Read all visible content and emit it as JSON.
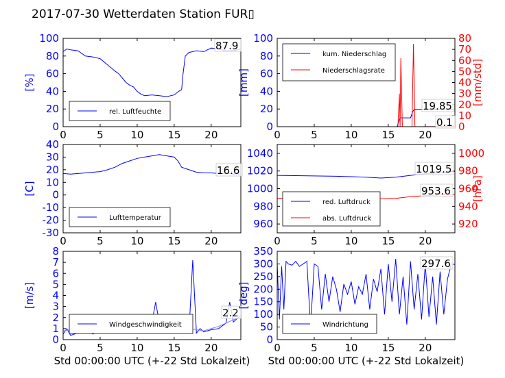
{
  "title": "2017-07-30 Wetterdaten Station FUR▯",
  "colors": {
    "primary": "#0000ff",
    "secondary": "#ff0000",
    "light": "#8080ff"
  },
  "chart_data": [
    {
      "type": "line",
      "ylabel": "[%]",
      "ylim": [
        0,
        100
      ],
      "yticks": [
        0,
        20,
        40,
        60,
        80,
        100
      ],
      "xlim": [
        0,
        24
      ],
      "xticks": [
        0,
        5,
        10,
        15,
        20
      ],
      "legend": {
        "placement": "lower-left",
        "entries": [
          "rel. Luftfeuchte"
        ]
      },
      "annotation": "87.9",
      "series": [
        {
          "name": "rel. Luftfeuchte",
          "color": "#0000ff",
          "x": [
            0,
            0.5,
            1,
            2,
            3,
            4,
            5,
            6,
            7,
            7.5,
            8,
            8.5,
            9,
            9.5,
            10,
            10.5,
            11,
            12,
            13,
            14,
            15,
            15.6,
            16,
            16.2,
            16.5,
            17,
            18,
            19,
            20,
            21,
            22,
            23,
            24
          ],
          "y": [
            85,
            88,
            87,
            86,
            80,
            79,
            77,
            70,
            63,
            60,
            55,
            50,
            47,
            45,
            40,
            37,
            35,
            36,
            35,
            34,
            36,
            40,
            42,
            60,
            80,
            84,
            86,
            85,
            89,
            88,
            86,
            86,
            88
          ]
        }
      ]
    },
    {
      "type": "line",
      "ylabel": "[mm]",
      "ylim": [
        0,
        100
      ],
      "yticks": [
        0,
        20,
        40,
        60,
        80,
        100
      ],
      "y2label": "[mm/std]",
      "y2lim": [
        0,
        80
      ],
      "y2ticks": [
        0,
        10,
        20,
        30,
        40,
        50,
        60,
        70,
        80
      ],
      "xlim": [
        0,
        24
      ],
      "xticks": [
        0,
        5,
        10,
        15,
        20
      ],
      "legend": {
        "placement": "upper-left",
        "entries": [
          "kum. Niederschlag",
          "Niederschlagsrate"
        ]
      },
      "annotations": [
        "19.85",
        "0.1"
      ],
      "series": [
        {
          "name": "kum. Niederschlag",
          "color": "#0000ff",
          "axis": "left",
          "x": [
            0,
            16.2,
            16.4,
            16.6,
            18,
            18.3,
            18.5,
            20,
            24
          ],
          "y": [
            0,
            0,
            6,
            10,
            10,
            17,
            19.5,
            19.8,
            19.85
          ]
        },
        {
          "name": "Niederschlagsrate",
          "color": "#ff0000",
          "axis": "right",
          "x": [
            0,
            16.3,
            16.5,
            16.6,
            16.7,
            16.9,
            17,
            18.2,
            18.4,
            18.6,
            18.8,
            24
          ],
          "y": [
            0,
            0,
            30,
            0,
            62,
            0,
            0,
            0,
            75,
            0,
            0,
            0.1
          ]
        }
      ]
    },
    {
      "type": "line",
      "ylabel": "[C]",
      "ylim": [
        -30,
        40
      ],
      "yticks": [
        -30,
        -20,
        -10,
        0,
        10,
        20,
        30,
        40
      ],
      "xlim": [
        0,
        24
      ],
      "xticks": [
        0,
        5,
        10,
        15,
        20
      ],
      "legend": {
        "placement": "lower-left",
        "entries": [
          "Lufttemperatur"
        ]
      },
      "annotation": "16.6",
      "series": [
        {
          "name": "Lufttemperatur",
          "color": "#0000ff",
          "x": [
            0,
            1,
            2,
            3,
            4,
            5,
            6,
            7,
            8,
            9,
            10,
            11,
            12,
            13,
            14,
            15,
            15.5,
            16,
            17,
            18,
            19,
            20,
            21,
            22,
            23,
            24
          ],
          "y": [
            17,
            16.5,
            17,
            17.5,
            18,
            18.5,
            20,
            22,
            25,
            27,
            29,
            30,
            31,
            32,
            31,
            30,
            27,
            22,
            20,
            18,
            17.5,
            17.5,
            17,
            17,
            16.6,
            16.6
          ]
        }
      ]
    },
    {
      "type": "line",
      "ylabel": "",
      "ylim": [
        950,
        1050
      ],
      "yticks": [
        960,
        980,
        1000,
        1020,
        1040
      ],
      "y2label": "[hPa]",
      "y2lim": [
        910,
        1010
      ],
      "y2ticks": [
        920,
        940,
        960,
        980,
        1000
      ],
      "xlim": [
        0,
        24
      ],
      "xticks": [
        0,
        5,
        10,
        15,
        20
      ],
      "legend": {
        "placement": "lower-left",
        "entries": [
          "red. Luftdruck",
          "abs. Luftdruck"
        ]
      },
      "annotations": [
        "1019.5",
        "953.6"
      ],
      "series": [
        {
          "name": "red. Luftdruck",
          "color": "#0000ff",
          "axis": "left",
          "x": [
            0,
            4,
            8,
            12,
            14,
            16,
            18,
            20,
            22,
            24
          ],
          "y": [
            1015,
            1014.5,
            1014,
            1013,
            1012,
            1013,
            1015,
            1017,
            1018,
            1019.5
          ]
        },
        {
          "name": "abs. Luftdruck",
          "color": "#ff0000",
          "axis": "right",
          "x": [
            0,
            4,
            8,
            12,
            14,
            16,
            18,
            20,
            22,
            24
          ],
          "y": [
            949,
            949,
            949.5,
            949,
            948.5,
            949,
            951,
            952,
            953,
            953.6
          ]
        }
      ]
    },
    {
      "type": "line",
      "ylabel": "[m/s]",
      "ylim": [
        0,
        8
      ],
      "yticks": [
        0,
        1,
        2,
        3,
        4,
        5,
        6,
        7,
        8
      ],
      "xlim": [
        0,
        24
      ],
      "xticks": [
        0,
        5,
        10,
        15,
        20
      ],
      "xlabel": "Std 00:00:00 UTC (+-22 Std Lokalzeit)",
      "legend": {
        "placement": "lower-left",
        "entries": [
          "Windgeschwindigkeit"
        ]
      },
      "annotation": "2.2",
      "series": [
        {
          "name": "Windgeschwindigkeit",
          "color": "#0000ff",
          "x": [
            0,
            0.5,
            1,
            2,
            3,
            4,
            5,
            6,
            7,
            7.5,
            8,
            9,
            10,
            11,
            12,
            12.5,
            13,
            14,
            15,
            16,
            17,
            17.5,
            18,
            18.5,
            19,
            20,
            21,
            22,
            22.5,
            23,
            24
          ],
          "y": [
            0.5,
            1,
            0.4,
            0.6,
            1.2,
            0.5,
            0.8,
            1,
            1.4,
            2.2,
            1.2,
            1,
            1.5,
            0.9,
            1.6,
            3.4,
            1.5,
            1.2,
            2.3,
            1,
            0.8,
            7.2,
            0.6,
            1,
            0.7,
            0.9,
            1,
            1.5,
            3.4,
            1.6,
            2.2
          ]
        },
        {
          "name": "",
          "color": "#8080ff",
          "x": [
            0,
            1,
            2,
            3,
            4,
            5,
            6,
            7,
            8,
            9,
            10,
            11,
            12,
            13,
            14,
            15,
            16,
            17,
            18,
            19,
            20,
            21,
            22,
            23,
            24
          ],
          "y": [
            0.8,
            0.9,
            1.2,
            1,
            0.8,
            0.9,
            1.1,
            1.3,
            1.6,
            1.4,
            1.5,
            1.6,
            1.7,
            1.8,
            1.6,
            1.5,
            1.2,
            1,
            0.9,
            0.8,
            1,
            1.2,
            1.5,
            1.8,
            2
          ]
        }
      ]
    },
    {
      "type": "line",
      "ylabel": "[deg]",
      "ylim": [
        0,
        350
      ],
      "yticks": [
        0,
        50,
        100,
        150,
        200,
        250,
        300,
        350
      ],
      "xlim": [
        0,
        24
      ],
      "xticks": [
        0,
        5,
        10,
        15,
        20
      ],
      "xlabel": "Std 00:00:00 UTC (+-22 Std Lokalzeit)",
      "legend": {
        "placement": "lower-left",
        "entries": [
          "Windrichtung"
        ]
      },
      "annotation": "297.6",
      "series": [
        {
          "name": "Windrichtung",
          "color": "#0000ff",
          "x": [
            0,
            0.3,
            0.6,
            0.9,
            1.2,
            1.5,
            2,
            2.5,
            3,
            3.5,
            4,
            4.5,
            5,
            5.5,
            6,
            6.5,
            7,
            7.5,
            8,
            8.5,
            9,
            9.5,
            10,
            10.5,
            11,
            11.5,
            12,
            12.5,
            13,
            13.5,
            14,
            14.5,
            15,
            15.5,
            16,
            16.5,
            17,
            17.5,
            18,
            18.5,
            19,
            19.5,
            20,
            20.5,
            21,
            21.5,
            22,
            22.5,
            23,
            23.5,
            24
          ],
          "y": [
            300,
            80,
            290,
            120,
            310,
            300,
            295,
            310,
            290,
            300,
            310,
            50,
            300,
            290,
            120,
            260,
            150,
            250,
            200,
            110,
            220,
            180,
            230,
            140,
            210,
            180,
            260,
            120,
            240,
            190,
            280,
            100,
            300,
            150,
            320,
            100,
            250,
            60,
            310,
            120,
            260,
            80,
            300,
            90,
            250,
            60,
            270,
            100,
            240,
            300,
            298
          ]
        }
      ]
    }
  ]
}
